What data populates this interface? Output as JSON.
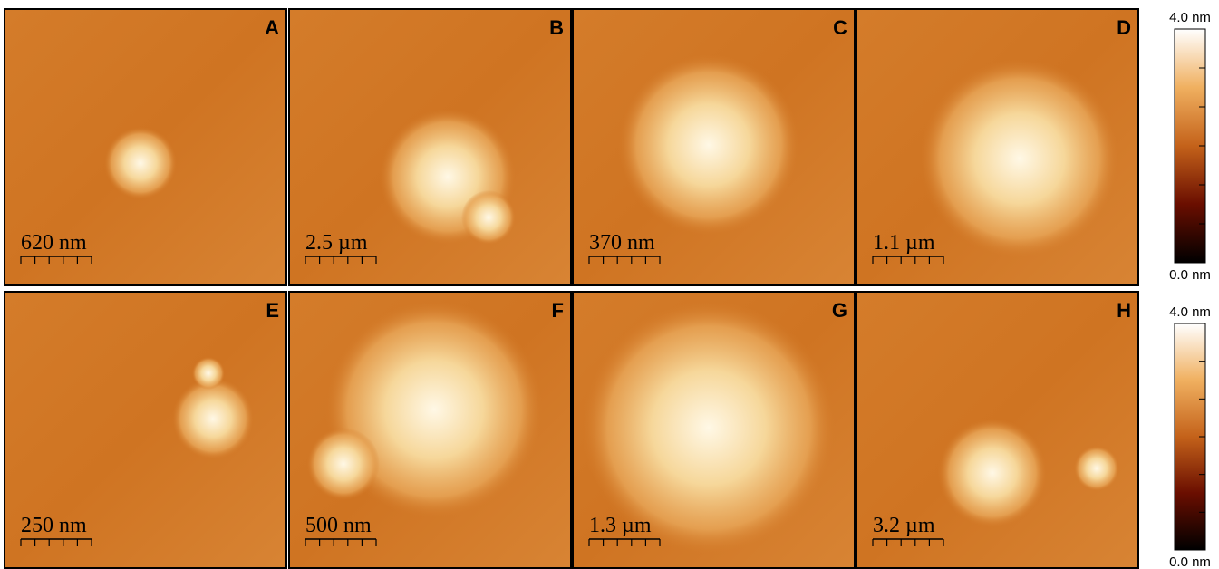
{
  "panels": [
    {
      "letter": "A",
      "scale_bar": "620 nm"
    },
    {
      "letter": "B",
      "scale_bar": "2.5 µm"
    },
    {
      "letter": "C",
      "scale_bar": "370 nm"
    },
    {
      "letter": "D",
      "scale_bar": "1.1 µm"
    },
    {
      "letter": "E",
      "scale_bar": "250 nm"
    },
    {
      "letter": "F",
      "scale_bar": "500 nm"
    },
    {
      "letter": "G",
      "scale_bar": "1.3 µm"
    },
    {
      "letter": "H",
      "scale_bar": "3.2 µm"
    }
  ],
  "colorbars": [
    {
      "max": "4.0 nm",
      "min": "0.0 nm"
    },
    {
      "max": "4.0 nm",
      "min": "0.0 nm"
    }
  ]
}
